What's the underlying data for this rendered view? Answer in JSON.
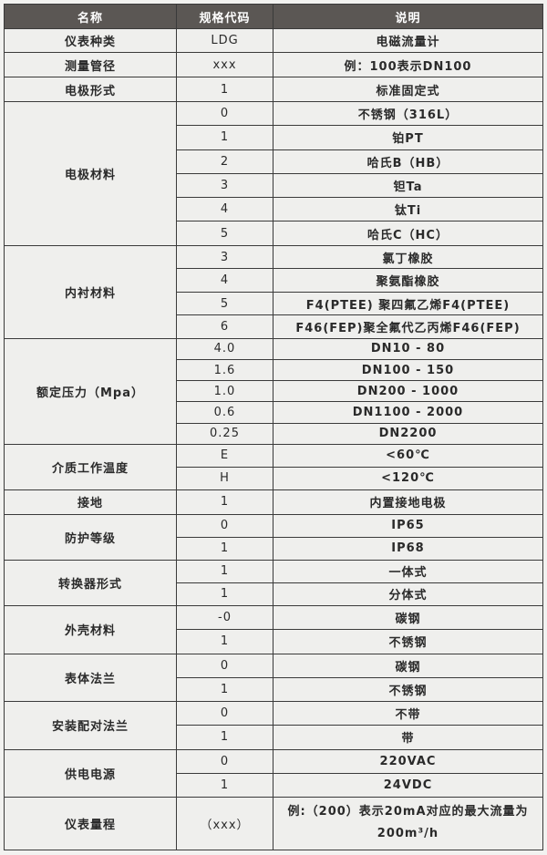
{
  "header": {
    "name": "名称",
    "code": "规格代码",
    "desc": "说明"
  },
  "groups": [
    {
      "name": "仪表种类",
      "items": [
        {
          "code": "LDG",
          "desc": "电磁流量计"
        }
      ]
    },
    {
      "name": "测量管径",
      "items": [
        {
          "code": "xxx",
          "desc": "例：100表示DN100"
        }
      ]
    },
    {
      "name": "电极形式",
      "items": [
        {
          "code": "1",
          "desc": "标准固定式"
        }
      ]
    },
    {
      "name": "电极材料",
      "items": [
        {
          "code": "0",
          "desc": "不锈钢（316L）"
        },
        {
          "code": "1",
          "desc": "铂PT"
        },
        {
          "code": "2",
          "desc": "哈氏B（HB）"
        },
        {
          "code": "3",
          "desc": "钽Ta"
        },
        {
          "code": "4",
          "desc": "钛Ti"
        },
        {
          "code": "5",
          "desc": "哈氏C（HC）"
        }
      ]
    },
    {
      "name": "内衬材料",
      "items": [
        {
          "code": "3",
          "desc": "氯丁橡胶"
        },
        {
          "code": "4",
          "desc": "聚氨酯橡胶"
        },
        {
          "code": "5",
          "desc": "F4(PTEE) 聚四氟乙烯F4(PTEE)"
        },
        {
          "code": "6",
          "desc": "F46(FEP)聚全氟代乙丙烯F46(FEP)"
        }
      ]
    },
    {
      "name": "额定压力（Mpa）",
      "items": [
        {
          "code": "4.0",
          "desc": "DN10 - 80"
        },
        {
          "code": "1.6",
          "desc": "DN100 - 150"
        },
        {
          "code": "1.0",
          "desc": "DN200 - 1000"
        },
        {
          "code": "0.6",
          "desc": "DN1100 - 2000"
        },
        {
          "code": "0.25",
          "desc": "DN2200"
        }
      ]
    },
    {
      "name": "介质工作温度",
      "items": [
        {
          "code": "E",
          "desc": "<60℃"
        },
        {
          "code": "H",
          "desc": "<120℃"
        }
      ]
    },
    {
      "name": "接地",
      "items": [
        {
          "code": "1",
          "desc": "内置接地电极"
        }
      ]
    },
    {
      "name": "防护等级",
      "items": [
        {
          "code": "0",
          "desc": "IP65"
        },
        {
          "code": "1",
          "desc": "IP68"
        }
      ]
    },
    {
      "name": "转换器形式",
      "items": [
        {
          "code": "1",
          "desc": "一体式"
        },
        {
          "code": "1",
          "desc": "分体式"
        }
      ]
    },
    {
      "name": "外壳材料",
      "items": [
        {
          "code": "-0",
          "desc": "碳钢"
        },
        {
          "code": "1",
          "desc": "不锈钢"
        }
      ]
    },
    {
      "name": "表体法兰",
      "items": [
        {
          "code": "0",
          "desc": "碳钢"
        },
        {
          "code": "1",
          "desc": "不锈钢"
        }
      ]
    },
    {
      "name": "安装配对法兰",
      "items": [
        {
          "code": "0",
          "desc": "不带"
        },
        {
          "code": "1",
          "desc": "带"
        }
      ]
    },
    {
      "name": "供电电源",
      "items": [
        {
          "code": "0",
          "desc": "220VAC"
        },
        {
          "code": "1",
          "desc": "24VDC"
        }
      ]
    },
    {
      "name": "仪表量程",
      "items": [
        {
          "code": "（xxx）",
          "desc": "例:（200）表示20mA对应的最大流量为200m³/h"
        }
      ]
    }
  ]
}
